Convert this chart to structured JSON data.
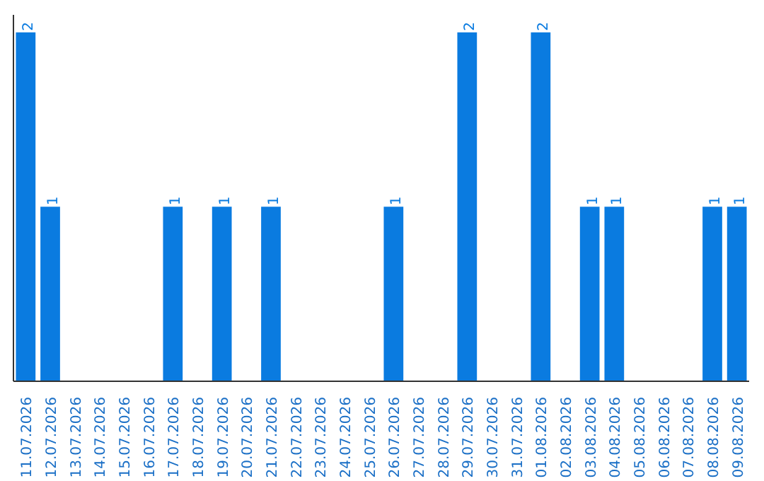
{
  "chart_data": {
    "type": "bar",
    "categories": [
      "11.07.2026",
      "12.07.2026",
      "13.07.2026",
      "14.07.2026",
      "15.07.2026",
      "16.07.2026",
      "17.07.2026",
      "18.07.2026",
      "19.07.2026",
      "20.07.2026",
      "21.07.2026",
      "22.07.2026",
      "23.07.2026",
      "24.07.2026",
      "25.07.2026",
      "26.07.2026",
      "27.07.2026",
      "28.07.2026",
      "29.07.2026",
      "30.07.2026",
      "31.07.2026",
      "01.08.2026",
      "02.08.2026",
      "03.08.2026",
      "04.08.2026",
      "05.08.2026",
      "06.08.2026",
      "07.08.2026",
      "08.08.2026",
      "09.08.2026"
    ],
    "values": [
      2,
      1,
      0,
      0,
      0,
      0,
      1,
      0,
      1,
      0,
      1,
      0,
      0,
      0,
      0,
      1,
      0,
      0,
      2,
      0,
      0,
      2,
      0,
      1,
      1,
      0,
      0,
      0,
      1,
      1
    ],
    "value_labels": [
      "2",
      "1",
      null,
      null,
      null,
      null,
      "1",
      null,
      "1",
      null,
      "1",
      null,
      null,
      null,
      null,
      "1",
      null,
      null,
      "2",
      null,
      null,
      "2",
      null,
      "1",
      "1",
      null,
      null,
      null,
      "1",
      "1"
    ],
    "color": "#0a7be0",
    "grid": false,
    "tick_labels": "x"
  }
}
